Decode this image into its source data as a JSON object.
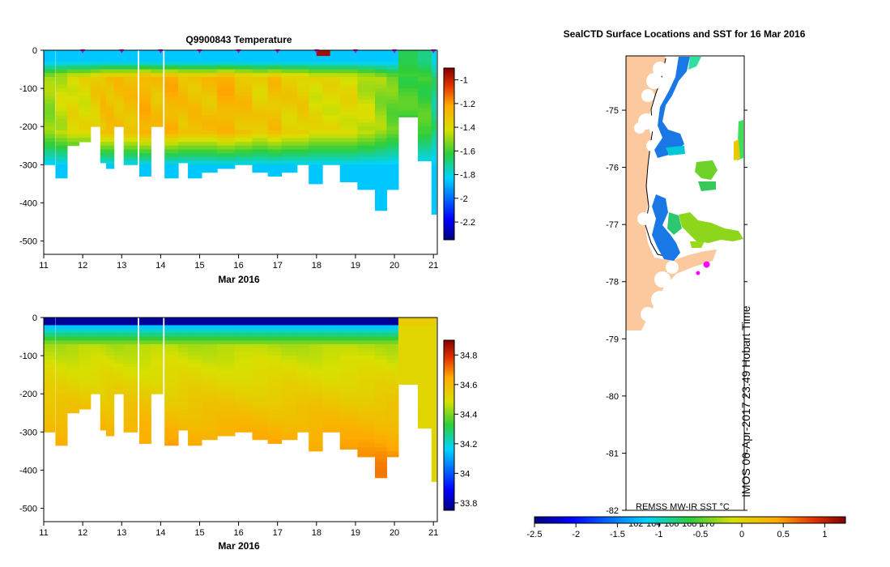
{
  "chart_data": [
    {
      "id": "temperature",
      "type": "heatmap",
      "title": "Q9900843  Temperature",
      "xlabel": "Mar 2016",
      "x_ticks": [
        "11",
        "12",
        "13",
        "14",
        "15",
        "16",
        "17",
        "18",
        "19",
        "20",
        "21"
      ],
      "xlim": [
        11,
        21.1
      ],
      "y_ticks": [
        "0",
        "-100",
        "-200",
        "-300",
        "-400",
        "-500"
      ],
      "ylim": [
        -535,
        0
      ],
      "colorbar": {
        "min": -2.35,
        "max": -0.9,
        "ticks": [
          "-1",
          "-1.2",
          "-1.4",
          "-1.6",
          "-1.8",
          "-2",
          "-2.2"
        ]
      },
      "profile_markers": [
        12,
        13,
        14,
        15,
        16,
        17,
        18,
        19,
        20,
        21
      ],
      "profiles": [
        {
          "t": 11.0,
          "w": 0.28,
          "bottom": -300,
          "surface": -1.85,
          "core": -1.5
        },
        {
          "t": 11.3,
          "w": 0.3,
          "bottom": -335,
          "surface": -1.85,
          "core": -1.45
        },
        {
          "t": 11.6,
          "w": 0.3,
          "bottom": -250,
          "surface": -1.85,
          "core": -1.4
        },
        {
          "t": 11.9,
          "w": 0.3,
          "bottom": -240,
          "surface": -1.85,
          "core": -1.4
        },
        {
          "t": 12.2,
          "w": 0.3,
          "bottom": -200,
          "surface": -1.85,
          "core": -1.35
        },
        {
          "t": 12.45,
          "w": 0.2,
          "bottom": -295,
          "surface": -1.85,
          "core": -1.3
        },
        {
          "t": 12.6,
          "w": 0.2,
          "bottom": -310,
          "surface": -1.85,
          "core": -1.3
        },
        {
          "t": 12.8,
          "w": 0.3,
          "bottom": -200,
          "surface": -1.85,
          "core": -1.3
        },
        {
          "t": 13.05,
          "w": 0.35,
          "bottom": -300,
          "surface": -1.85,
          "core": -1.3
        },
        {
          "t": 13.45,
          "w": 0.3,
          "bottom": -330,
          "surface": -1.85,
          "core": -1.25
        },
        {
          "t": 13.75,
          "w": 0.3,
          "bottom": -200,
          "surface": -1.85,
          "core": -1.3
        },
        {
          "t": 14.1,
          "w": 0.35,
          "bottom": -335,
          "surface": -1.85,
          "core": -1.25
        },
        {
          "t": 14.45,
          "w": 0.25,
          "bottom": -295,
          "surface": -1.85,
          "core": -1.3
        },
        {
          "t": 14.7,
          "w": 0.35,
          "bottom": -335,
          "surface": -1.85,
          "core": -1.3
        },
        {
          "t": 15.05,
          "w": 0.4,
          "bottom": -320,
          "surface": -1.85,
          "core": -1.3
        },
        {
          "t": 15.45,
          "w": 0.45,
          "bottom": -310,
          "surface": -1.85,
          "core": -1.25
        },
        {
          "t": 15.9,
          "w": 0.45,
          "bottom": -300,
          "surface": -1.85,
          "core": -1.3
        },
        {
          "t": 16.35,
          "w": 0.4,
          "bottom": -320,
          "surface": -1.85,
          "core": -1.35
        },
        {
          "t": 16.75,
          "w": 0.35,
          "bottom": -330,
          "surface": -1.85,
          "core": -1.3
        },
        {
          "t": 17.1,
          "w": 0.4,
          "bottom": -320,
          "surface": -1.85,
          "core": -1.35
        },
        {
          "t": 17.5,
          "w": 0.3,
          "bottom": -300,
          "surface": -1.85,
          "core": -1.35
        },
        {
          "t": 17.8,
          "w": 0.35,
          "bottom": -350,
          "surface": -1.85,
          "core": -1.4
        },
        {
          "t": 18.15,
          "w": 0.45,
          "bottom": -300,
          "surface": -1.85,
          "core": -1.4
        },
        {
          "t": 18.6,
          "w": 0.45,
          "bottom": -345,
          "surface": -1.85,
          "core": -1.4
        },
        {
          "t": 19.05,
          "w": 0.45,
          "bottom": -365,
          "surface": -1.85,
          "core": -1.45
        },
        {
          "t": 19.5,
          "w": 0.3,
          "bottom": -420,
          "surface": -1.85,
          "core": -1.5
        },
        {
          "t": 19.8,
          "w": 0.3,
          "bottom": -365,
          "surface": -1.85,
          "core": -1.55
        },
        {
          "t": 20.1,
          "w": 0.5,
          "bottom": -175,
          "surface": -1.65,
          "core": -1.6
        },
        {
          "t": 20.6,
          "w": 0.35,
          "bottom": -290,
          "surface": -1.7,
          "core": -1.6
        },
        {
          "t": 20.95,
          "w": 0.12,
          "bottom": -430,
          "surface": -1.8,
          "core": -1.7
        }
      ]
    },
    {
      "id": "salinity",
      "type": "heatmap",
      "title": "",
      "xlabel": "Mar 2016",
      "x_ticks": [
        "11",
        "12",
        "13",
        "14",
        "15",
        "16",
        "17",
        "18",
        "19",
        "20",
        "21"
      ],
      "xlim": [
        11,
        21.1
      ],
      "y_ticks": [
        "0",
        "-100",
        "-200",
        "-300",
        "-400",
        "-500"
      ],
      "ylim": [
        -535,
        0
      ],
      "colorbar": {
        "min": 33.75,
        "max": 34.9,
        "ticks": [
          "34.8",
          "34.6",
          "34.4",
          "34.2",
          "34",
          "33.8"
        ]
      },
      "profiles_reference": "same profile times/depths as temperature panel",
      "surface_value": 34.1,
      "deep_value": 34.7
    },
    {
      "id": "sst_map",
      "type": "heatmap",
      "title": "SealCTD Surface Locations and SST for 16 Mar 2016",
      "xlabel": "",
      "ylabel": "",
      "y_ticks": [
        "-75",
        "-76",
        "-77",
        "-78",
        "-79",
        "-80",
        "-81",
        "-82"
      ],
      "ylim": [
        -82,
        -74.05
      ],
      "x_ticks_overlay": [
        "162",
        "164",
        "166",
        "168",
        "170"
      ],
      "xlim": [
        160.5,
        171.5
      ],
      "colorbar": {
        "min": -2.5,
        "max": 1.25,
        "ticks": [
          "-2.5",
          "-2",
          "-1.5",
          "-1",
          "-0.5",
          "0",
          "0.5",
          "1"
        ]
      },
      "legend_label": "REMSS MW-IR SST °C",
      "credit": "IMOS 06-Apr-2017 23:49 Hobart Time",
      "seal_locations": [
        {
          "lon": 168.0,
          "lat": -77.7
        },
        {
          "lon": 167.2,
          "lat": -77.85
        }
      ]
    }
  ],
  "colors": {
    "land": "#fcc89d",
    "seal_marker": "#ff00ff",
    "profile_marker": "#d400d4"
  }
}
